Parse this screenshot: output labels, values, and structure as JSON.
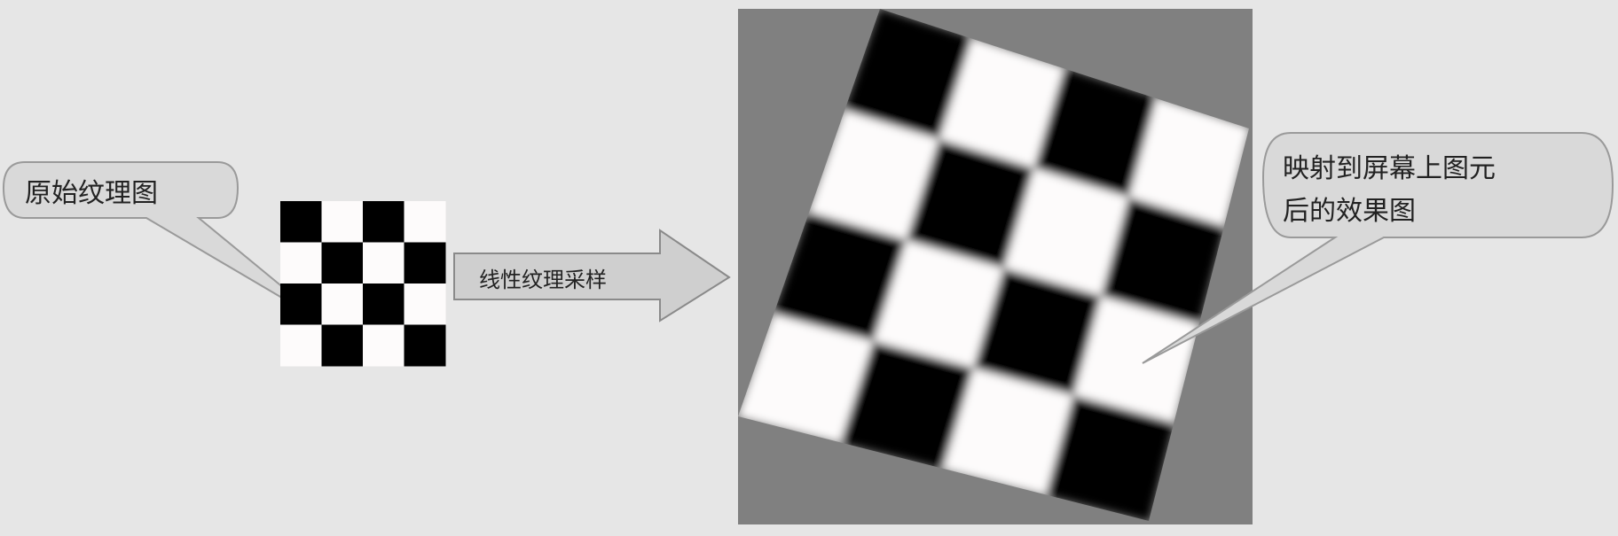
{
  "left_callout": {
    "text": "原始纹理图"
  },
  "arrow": {
    "label": "线性纹理采样"
  },
  "right_callout": {
    "lines": [
      "映射到屏幕上图元",
      "后的效果图"
    ]
  },
  "original_texture": {
    "rows": 4,
    "cols": 4,
    "first_cell": "black"
  },
  "mapped_texture": {
    "rows": 4,
    "cols": 4,
    "first_cell": "black",
    "filter": "linear"
  },
  "colors": {
    "background": "#e6e6e6",
    "screen_background": "#808080",
    "dark_cell": "#000000",
    "light_cell": "#fdfbfb",
    "callout_fill": "#d9d9d9",
    "arrow_fill": "#cfcfcf"
  }
}
